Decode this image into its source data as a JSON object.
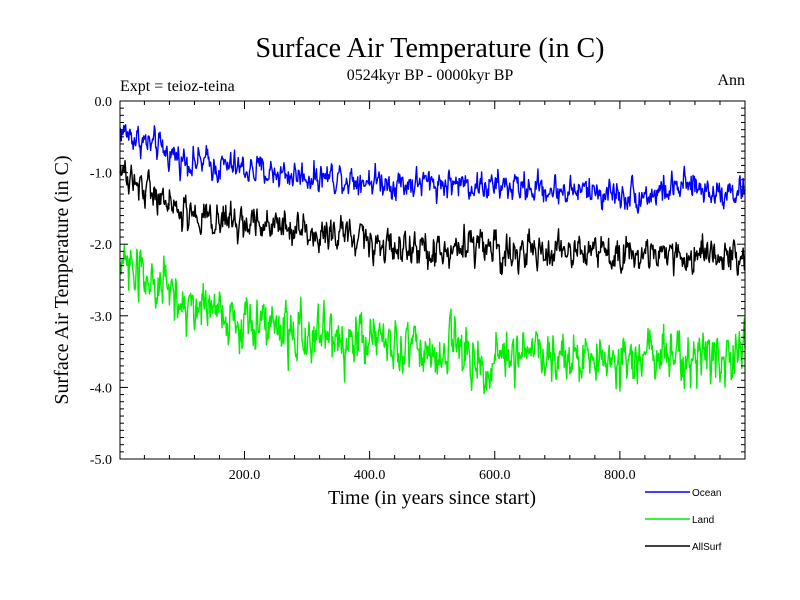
{
  "chart_data": {
    "type": "line",
    "title": "Surface Air Temperature (in C)",
    "subtitle": "0524kyr BP - 0000kyr BP",
    "left_label": "Expt = teioz-teina",
    "right_label": "Ann",
    "xlabel": "Time (in years since start)",
    "ylabel": "Surface Air Temperature (in C)",
    "xlim": [
      1,
      1000
    ],
    "ylim": [
      -5.0,
      0.0
    ],
    "x_ticks": [
      200,
      400,
      600,
      800
    ],
    "x_tick_labels": [
      "200.0",
      "400.0",
      "600.0",
      "800.0"
    ],
    "y_ticks": [
      0,
      -1,
      -2,
      -3,
      -4,
      -5
    ],
    "y_tick_labels": [
      "0.0",
      "-1.0",
      "-2.0",
      "-3.0",
      "-4.0",
      "-5.0"
    ],
    "legend_position": "bottom-right, outside plot",
    "series": [
      {
        "name": "Ocean",
        "color": "#0000ff",
        "trend_x": [
          0,
          50,
          100,
          150,
          200,
          250,
          300,
          350,
          400,
          450,
          500,
          550,
          600,
          650,
          700,
          750,
          800,
          850,
          900,
          950,
          1000
        ],
        "trend_y": [
          -0.4,
          -0.62,
          -0.8,
          -0.9,
          -0.95,
          -1.0,
          -1.05,
          -1.05,
          -1.1,
          -1.15,
          -1.15,
          -1.15,
          -1.2,
          -1.2,
          -1.25,
          -1.25,
          -1.3,
          -1.3,
          -1.2,
          -1.25,
          -1.25
        ],
        "noise_amplitude": 0.12
      },
      {
        "name": "Land",
        "color": "#00ee00",
        "trend_x": [
          0,
          50,
          100,
          150,
          200,
          250,
          300,
          350,
          400,
          450,
          500,
          550,
          600,
          650,
          700,
          750,
          800,
          850,
          900,
          950,
          1000
        ],
        "trend_y": [
          -2.1,
          -2.6,
          -2.85,
          -2.95,
          -3.05,
          -3.15,
          -3.25,
          -3.35,
          -3.35,
          -3.45,
          -3.5,
          -3.5,
          -3.55,
          -3.55,
          -3.55,
          -3.6,
          -3.6,
          -3.6,
          -3.55,
          -3.6,
          -3.55
        ],
        "noise_amplitude": 0.22
      },
      {
        "name": "AllSurf",
        "color": "#000000",
        "trend_x": [
          0,
          50,
          100,
          150,
          200,
          250,
          300,
          350,
          400,
          450,
          500,
          550,
          600,
          650,
          700,
          750,
          800,
          850,
          900,
          950,
          1000
        ],
        "trend_y": [
          -1.0,
          -1.3,
          -1.5,
          -1.6,
          -1.7,
          -1.75,
          -1.85,
          -1.9,
          -1.95,
          -2.05,
          -2.05,
          -2.05,
          -2.1,
          -2.1,
          -2.15,
          -2.15,
          -2.15,
          -2.15,
          -2.1,
          -2.1,
          -2.1
        ],
        "noise_amplitude": 0.14
      }
    ]
  }
}
